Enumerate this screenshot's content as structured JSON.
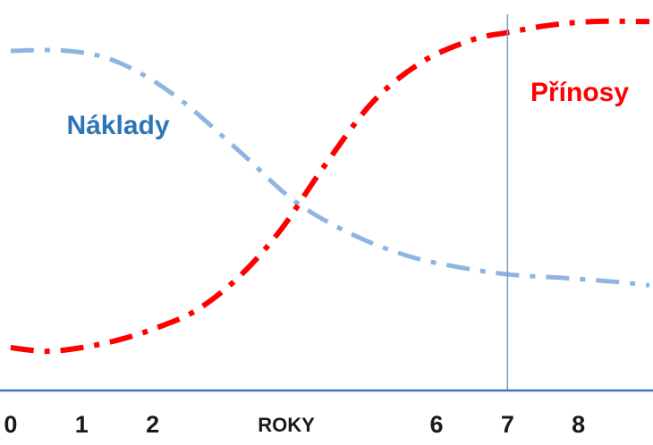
{
  "chart_data": {
    "type": "line",
    "xlabel": "ROKY",
    "x_ticks": [
      "0",
      "1",
      "2",
      "6",
      "7",
      "8"
    ],
    "x_tick_values": [
      0,
      1,
      2,
      6,
      7,
      8
    ],
    "xlim": [
      -0.15,
      9.05
    ],
    "ylim": [
      0,
      100
    ],
    "marker_x": 7,
    "marker_label": "7",
    "grid": false,
    "legend": "none",
    "series": [
      {
        "name": "Náklady",
        "color": "#8fb4e3",
        "style": "dash-dot",
        "x": [
          0,
          0.8,
          1.5,
          2.3,
          3.2,
          4,
          4.8,
          5.6,
          6.3,
          7,
          7.8,
          8.5,
          9
        ],
        "y": [
          91,
          91,
          88,
          79,
          64,
          50,
          41,
          35,
          32,
          30,
          29,
          28,
          27
        ]
      },
      {
        "name": "Přínosy",
        "color": "#ff0000",
        "style": "dash-dot",
        "x": [
          0,
          0.5,
          1,
          1.5,
          2,
          2.6,
          3.2,
          3.8,
          4.4,
          5.1,
          5.8,
          6.5,
          7,
          7.6,
          8.2,
          9
        ],
        "y": [
          10,
          9,
          10,
          12,
          15,
          20,
          29,
          42,
          59,
          77,
          88,
          94,
          96,
          98,
          99,
          99
        ]
      }
    ]
  }
}
